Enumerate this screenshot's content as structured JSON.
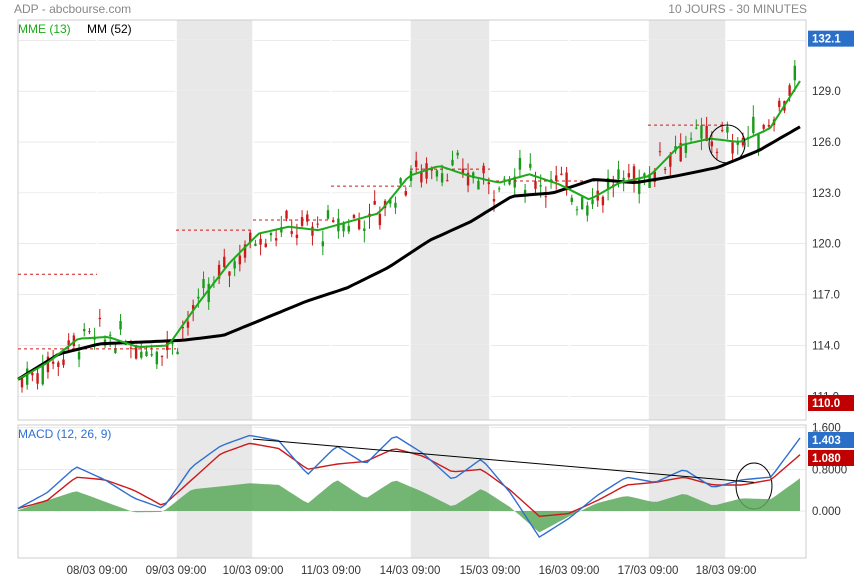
{
  "header": {
    "title": "ADP - abcbourse.com",
    "period": "10 JOURS - 30 MINUTES"
  },
  "legend": {
    "ema_label": "MME (13)",
    "ema_color": "#1aaa1a",
    "sma_label": "MM (52)",
    "sma_color": "#000000"
  },
  "macd_panel": {
    "label": "MACD (12, 26, 9)",
    "macd_color": "#2f6fd0",
    "signal_color": "#cc1a1a",
    "histogram_color": "#5aa85a"
  },
  "price_badges": {
    "last_price": "132.1",
    "last_color": "#2a6fc8",
    "low_price": "110.0",
    "low_color": "#c00000"
  },
  "macd_badges": {
    "macd_value": "1.403",
    "macd_color": "#2a6fc8",
    "signal_value": "1.080",
    "signal_color": "#c00000"
  },
  "chart_data": [
    {
      "type": "candlestick",
      "title": "ADP",
      "x_dates": [
        "08/03 09:00",
        "09/03 09:00",
        "10/03 09:00",
        "11/03 09:00",
        "14/03 09:00",
        "15/03 09:00",
        "16/03 09:00",
        "17/03 09:00",
        "18/03 09:00"
      ],
      "y_ticks": [
        111.0,
        114.0,
        117.0,
        120.0,
        123.0,
        126.0,
        129.0,
        132.0
      ],
      "y_tick_labels": [
        "111.0",
        "114.0",
        "117.0",
        "120.0",
        "123.0",
        "126.0",
        "129.0"
      ],
      "ylim": [
        109.6,
        133.2
      ],
      "ema13_anchor_values": [
        112.0,
        113.0,
        114.4,
        114.5,
        113.9,
        114.0,
        116.5,
        118.8,
        120.6,
        121.0,
        120.8,
        121.3,
        121.8,
        124.0,
        124.6,
        124.0,
        123.6,
        124.1,
        123.5,
        122.6,
        123.6,
        124.0,
        125.8,
        126.2,
        126.0,
        126.8,
        129.6
      ],
      "sma52_anchor_values": [
        112.0,
        113.5,
        114.1,
        114.2,
        114.3,
        114.6,
        115.6,
        116.6,
        117.4,
        118.6,
        120.2,
        121.3,
        122.8,
        123.0,
        123.8,
        123.6,
        124.0,
        124.5,
        125.5,
        126.9
      ],
      "support_levels": [
        {
          "from": "day-0",
          "to": "day-1",
          "value": 118.2
        },
        {
          "from": "day-0",
          "to": "day-2",
          "value": 113.8
        },
        {
          "from": "day-2",
          "to": "day-3",
          "value": 120.8
        },
        {
          "from": "day-3",
          "to": "day-4",
          "value": 121.4
        },
        {
          "from": "day-4",
          "to": "day-5",
          "value": 123.4
        },
        {
          "from": "day-5",
          "to": "day-6",
          "value": 124.4
        },
        {
          "from": "day-6",
          "to": "day-8",
          "value": 123.7
        },
        {
          "from": "day-8",
          "to": "day-9",
          "value": 127.0
        }
      ],
      "last_close": 132.1,
      "lowest_marked": 110.0
    },
    {
      "type": "line",
      "title": "MACD (12, 26, 9)",
      "y_ticks": [
        0.0,
        0.8,
        1.6
      ],
      "y_tick_labels": [
        "0.000",
        "0.8000",
        "1.600"
      ],
      "ylim": [
        -0.9,
        1.65
      ],
      "series": [
        {
          "name": "MACD",
          "anchor_values": [
            0.05,
            0.35,
            0.85,
            0.6,
            0.25,
            0.05,
            0.85,
            1.25,
            1.45,
            1.35,
            0.7,
            1.25,
            0.9,
            1.45,
            1.1,
            0.6,
            1.0,
            0.35,
            -0.5,
            -0.15,
            0.3,
            0.65,
            0.55,
            0.8,
            0.45,
            0.6,
            0.65,
            1.4
          ]
        },
        {
          "name": "Signal",
          "anchor_values": [
            0.05,
            0.2,
            0.65,
            0.6,
            0.4,
            0.1,
            0.6,
            1.1,
            1.3,
            1.2,
            0.8,
            0.9,
            0.95,
            1.2,
            1.05,
            0.75,
            0.8,
            0.4,
            -0.1,
            -0.05,
            0.2,
            0.5,
            0.55,
            0.65,
            0.5,
            0.5,
            0.6,
            1.08
          ]
        }
      ],
      "trendline": {
        "start": 1.38,
        "end": 0.55
      },
      "last_macd": 1.403,
      "last_signal": 1.08
    }
  ]
}
